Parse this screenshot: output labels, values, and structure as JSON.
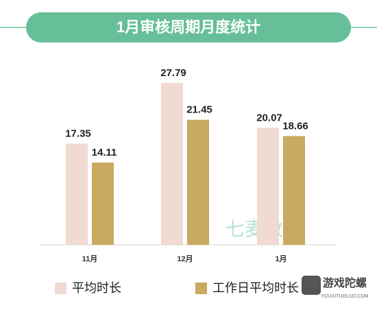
{
  "chart_data": {
    "type": "bar",
    "title": "1月审核周期月度统计",
    "categories": [
      "11月",
      "12月",
      "1月"
    ],
    "series": [
      {
        "name": "平均时长",
        "color": "#f0dad2",
        "values": [
          17.35,
          27.79,
          20.07
        ]
      },
      {
        "name": "工作日平均时长",
        "color": "#c8aa60",
        "values": [
          14.11,
          21.45,
          18.66
        ]
      }
    ],
    "ylim": [
      0,
      30
    ],
    "legend": "bottom",
    "watermarks": [
      "七麦数据",
      "游戏陀螺",
      "YOUXITUOLUO.COM"
    ]
  }
}
